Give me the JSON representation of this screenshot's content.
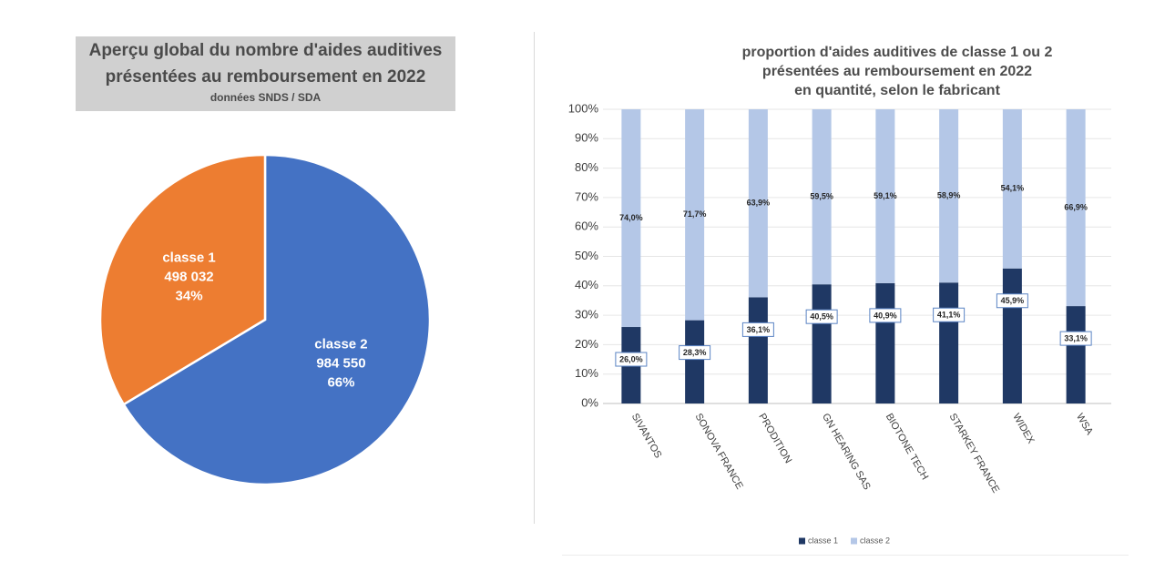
{
  "chart_data": [
    {
      "type": "pie",
      "title": "Aperçu global du nombre d'aides auditives présentées au remboursement en 2022",
      "title_lines": [
        "Aperçu global du nombre d'aides auditives",
        "présentées au remboursement en 2022"
      ],
      "subtitle": "données SNDS / SDA",
      "slices": [
        {
          "name": "classe 2",
          "value": 984550,
          "value_label": "984 550",
          "percent_label": "66%",
          "color": "#4472C4"
        },
        {
          "name": "classe 1",
          "value": 498032,
          "value_label": "498 032",
          "percent_label": "34%",
          "color": "#ED7D31"
        }
      ]
    },
    {
      "type": "bar",
      "stacked": true,
      "normalized": true,
      "title_lines": [
        "proportion d'aides auditives de classe 1 ou 2",
        "présentées au remboursement en 2022",
        "en quantité, selon le fabricant"
      ],
      "categories": [
        "SIVANTOS",
        "SONOVA FRANCE",
        "PRODITION",
        "GN HEARING SAS",
        "BIOTONE TECH",
        "STARKEY FRANCE",
        "WIDEX",
        "WSA"
      ],
      "series": [
        {
          "name": "classe 1",
          "color": "#1F3864",
          "values": [
            26.0,
            28.3,
            36.1,
            40.5,
            40.9,
            41.1,
            45.9,
            33.1
          ],
          "labels": [
            "26,0%",
            "28,3%",
            "36,1%",
            "40,5%",
            "40,9%",
            "41,1%",
            "45,9%",
            "33,1%"
          ]
        },
        {
          "name": "classe 2",
          "color": "#B4C7E7",
          "values": [
            74.0,
            71.7,
            63.9,
            59.5,
            59.1,
            58.9,
            54.1,
            66.9
          ],
          "labels": [
            "74,0%",
            "71,7%",
            "63,9%",
            "59,5%",
            "59,1%",
            "58,9%",
            "54,1%",
            "66,9%"
          ]
        }
      ],
      "ylim": [
        0,
        100
      ],
      "yticks": [
        "0%",
        "10%",
        "20%",
        "30%",
        "40%",
        "50%",
        "60%",
        "70%",
        "80%",
        "90%",
        "100%"
      ],
      "legend": "bottom",
      "grid": true
    }
  ]
}
